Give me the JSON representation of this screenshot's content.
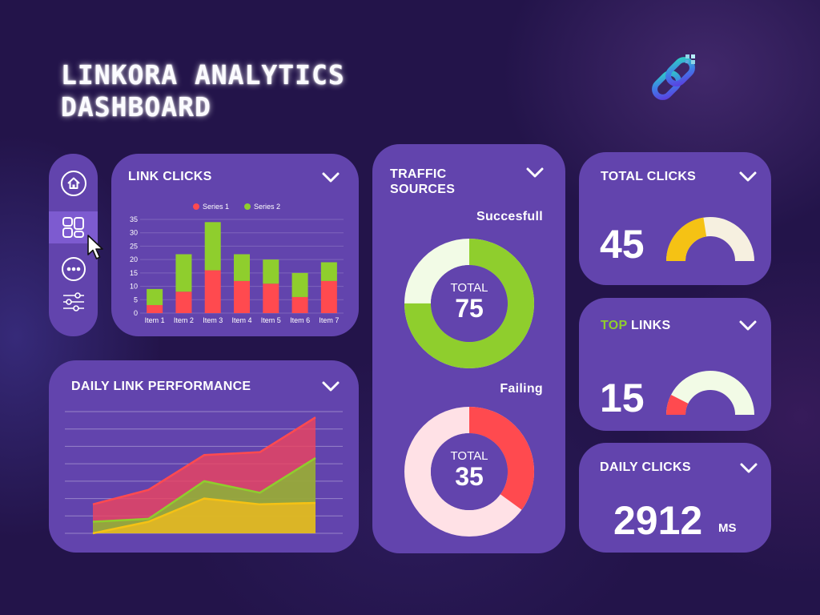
{
  "header": {
    "title_line1": "LINKORA ANALYTICS",
    "title_line2": "DASHBOARD",
    "logo_icon": "chain-link-logo-icon"
  },
  "sidebar": {
    "items": [
      {
        "icon": "home-icon",
        "active": false
      },
      {
        "icon": "dashboard-grid-icon",
        "active": true
      },
      {
        "icon": "more-dots-icon",
        "active": false
      },
      {
        "icon": "sliders-icon",
        "active": false
      }
    ]
  },
  "colors": {
    "background": "#23144a",
    "card": "#6244ad",
    "series1": "#ff4a4f",
    "series2": "#8fce2d",
    "yellow": "#f5c214",
    "cream": "#f6f0e0",
    "pale_green": "#f2fbe6",
    "pink": "#ffe1e6"
  },
  "link_clicks": {
    "title": "LINK CLICKS",
    "chart_data": {
      "type": "bar",
      "stacked": true,
      "categories": [
        "Item 1",
        "Item 2",
        "Item 3",
        "Item 4",
        "Item 5",
        "Item 6",
        "Item 7"
      ],
      "series": [
        {
          "name": "Series 1",
          "values": [
            3,
            8,
            16,
            12,
            11,
            6,
            12
          ]
        },
        {
          "name": "Series 2",
          "values": [
            6,
            14,
            18,
            10,
            9,
            9,
            7
          ]
        }
      ],
      "yticks": [
        0,
        5,
        10,
        15,
        20,
        25,
        30,
        35
      ],
      "ylim": [
        0,
        35
      ],
      "legend": "top"
    }
  },
  "daily_performance": {
    "title": "DAILY LINK PERFORMANCE",
    "chart_data": {
      "type": "area",
      "x": [
        1,
        2,
        3,
        4,
        5
      ],
      "series": [
        {
          "values": [
            10,
            15,
            27,
            28,
            40
          ]
        },
        {
          "values": [
            4,
            5,
            18,
            14,
            26
          ]
        },
        {
          "values": [
            0,
            4,
            12,
            10,
            10.5
          ]
        }
      ],
      "ylim": [
        0,
        42
      ],
      "grid": true
    }
  },
  "traffic": {
    "title_line1": "TRAFFIC",
    "title_line2": "SOURCES",
    "success": {
      "label": "Succesfull",
      "total_label": "TOTAL",
      "value": "75",
      "fraction": 0.75
    },
    "failing": {
      "label": "Failing",
      "total_label": "TOTAL",
      "value": "35",
      "fraction": 0.35
    }
  },
  "total_clicks": {
    "title": "TOTAL CLICKS",
    "value": "45",
    "gauge_fraction": 0.45
  },
  "top_links": {
    "title_highlight": "TOP",
    "title_rest": " LINKS",
    "value": "15",
    "gauge_fraction": 0.15
  },
  "daily_clicks": {
    "title": "DAILY CLICKS",
    "value": "2912",
    "unit": "MS"
  }
}
